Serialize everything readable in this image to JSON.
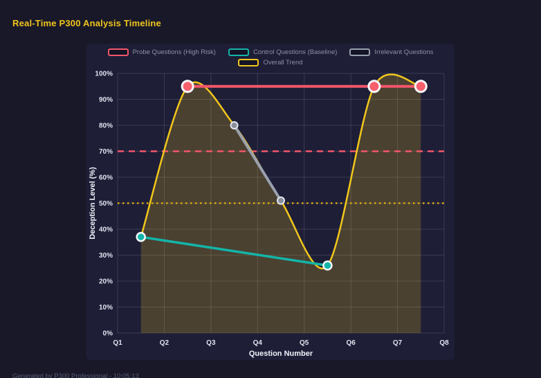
{
  "header": {
    "title": "Real-Time P300 Analysis Timeline"
  },
  "footer": {
    "text": "Generated by P300 Professional - 10:05:13"
  },
  "chart_data": {
    "type": "line",
    "title": "Real-Time P300 Analysis Timeline",
    "xlabel": "Question Number",
    "ylabel": "Deception Level (%)",
    "xlim": [
      1,
      8
    ],
    "ylim": [
      0,
      100
    ],
    "x_tick_values": [
      1,
      2,
      3,
      4,
      5,
      6,
      7,
      8
    ],
    "x_tick_labels": [
      "Q1",
      "Q2",
      "Q3",
      "Q4",
      "Q5",
      "Q6",
      "Q7",
      "Q8"
    ],
    "y_tick_values": [
      0,
      10,
      20,
      30,
      40,
      50,
      60,
      70,
      80,
      90,
      100
    ],
    "y_tick_labels": [
      "0%",
      "10%",
      "20%",
      "30%",
      "40%",
      "50%",
      "60%",
      "70%",
      "80%",
      "90%",
      "100%"
    ],
    "grid": true,
    "legend_position": "top",
    "series": [
      {
        "name": "Probe Questions (High Risk)",
        "slug": "probe-questions",
        "type": "line",
        "color": "#f4566a",
        "point_color": "#f6606c",
        "x": [
          2.5,
          6.5,
          7.5
        ],
        "y": [
          95,
          95,
          95
        ],
        "line_width": 4,
        "point_radius": 8
      },
      {
        "name": "Control Questions (Baseline)",
        "slug": "control-questions",
        "type": "line",
        "color": "#13b5a8",
        "point_color": "#13b5a8",
        "x": [
          1.5,
          5.5
        ],
        "y": [
          37,
          26
        ],
        "line_width": 3.5,
        "point_radius": 6
      },
      {
        "name": "Irrelevant Questions",
        "slug": "irrelevant-questions",
        "type": "line",
        "color": "#99a0ad",
        "point_color": "#8a8f9c",
        "x": [
          3.5,
          4.5
        ],
        "y": [
          80,
          51
        ],
        "line_width": 4,
        "point_radius": 5
      },
      {
        "name": "Overall Trend",
        "slug": "overall-trend",
        "type": "spline-area",
        "color": "#f2c71b",
        "fill_color": "rgba(242,199,27,0.21)",
        "x": [
          1.5,
          2.5,
          3.5,
          4.5,
          5.5,
          6.5,
          7.5
        ],
        "y": [
          37,
          95,
          80,
          51,
          26,
          95,
          95
        ],
        "line_width": 2.5,
        "point_radius": 0
      }
    ],
    "reference_lines": [
      {
        "y": 70,
        "color": "#f4566a",
        "style": "dashed"
      },
      {
        "y": 50,
        "color": "#daa90d",
        "style": "dotted"
      }
    ]
  }
}
